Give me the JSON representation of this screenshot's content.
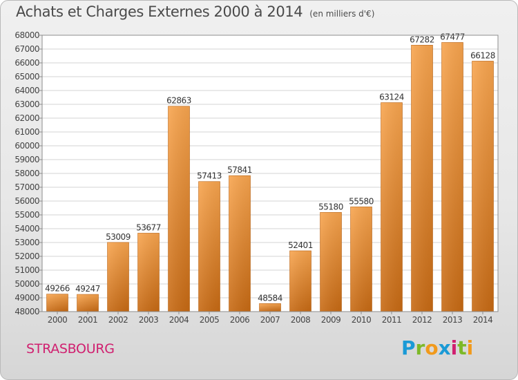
{
  "header": {
    "title": "Achats et Charges Externes 2000 à 2014",
    "subtitle": "(en milliers d'€)"
  },
  "footer": {
    "city": "STRASBOURG",
    "logo_letters": [
      "P",
      "r",
      "o",
      "x",
      "i",
      "t",
      "i"
    ],
    "logo_colors": [
      "#1a9ad6",
      "#7db928",
      "#f19a1c",
      "#1a9ad6",
      "#d01f6f",
      "#7db928",
      "#f19a1c"
    ]
  },
  "chart_data": {
    "type": "bar",
    "categories": [
      "2000",
      "2001",
      "2002",
      "2003",
      "2004",
      "2005",
      "2006",
      "2007",
      "2008",
      "2009",
      "2010",
      "2011",
      "2012",
      "2013",
      "2014"
    ],
    "values": [
      49266,
      49247,
      53009,
      53677,
      62863,
      57413,
      57841,
      48584,
      52401,
      55180,
      55580,
      63124,
      67282,
      67477,
      66128
    ],
    "data_labels": [
      "49266",
      "49247",
      "53009",
      "53677",
      "62863",
      "57413",
      "57841",
      "48584",
      "52401",
      "55180",
      "55580",
      "63124",
      "67282",
      "67477",
      "66128"
    ],
    "ylim": [
      48000,
      68000
    ],
    "y_ticks": [
      "48000",
      "49000",
      "50000",
      "51000",
      "52000",
      "53000",
      "54000",
      "55000",
      "56000",
      "57000",
      "58000",
      "59000",
      "60000",
      "61000",
      "62000",
      "63000",
      "64000",
      "65000",
      "66000",
      "67000",
      "68000"
    ],
    "grid": true,
    "bar_color_light": "#f8a54f",
    "bar_color_dark": "#c76a14"
  }
}
